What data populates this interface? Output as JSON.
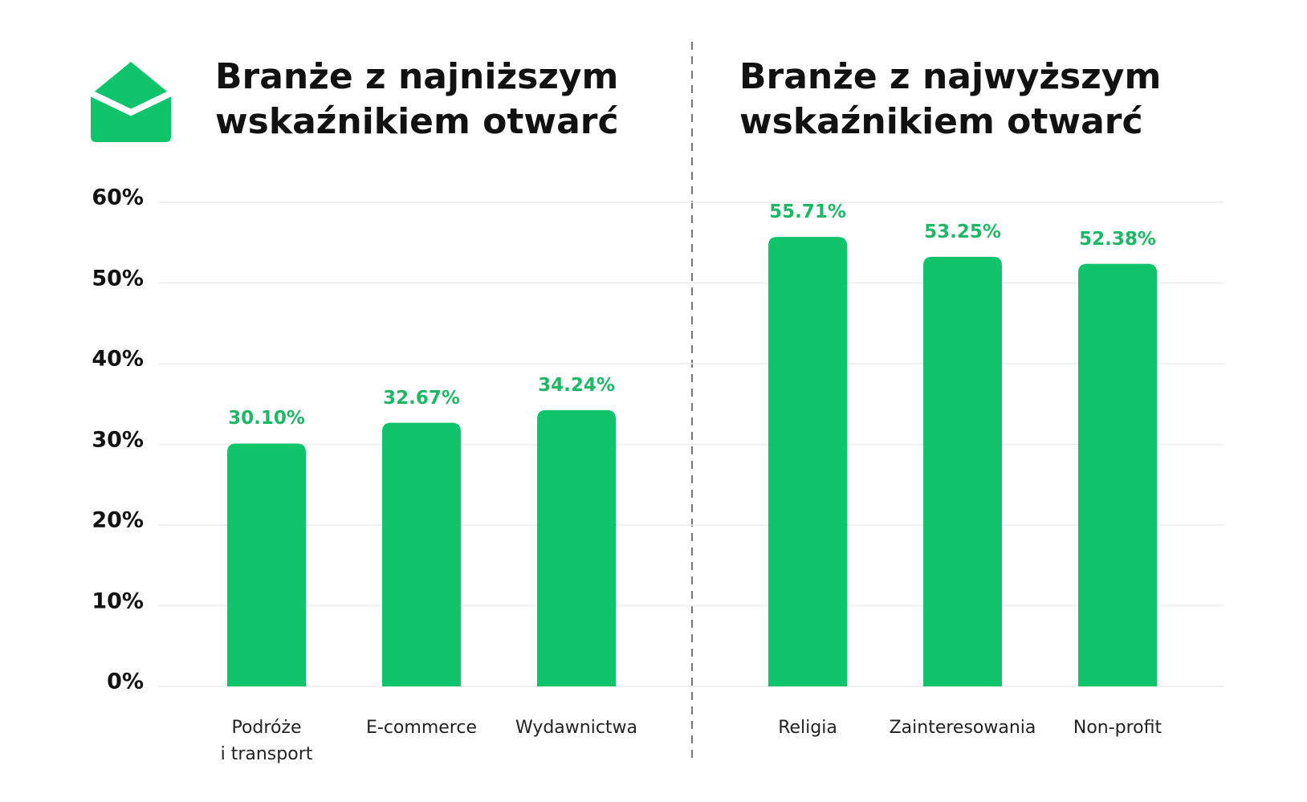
{
  "chart_data": [
    {
      "type": "bar",
      "title": "Branże z najniższym\nwskaźnikiem otwarć",
      "categories": [
        "Podróże\ni transport",
        "E-commerce",
        "Wydawnictwa"
      ],
      "values": [
        30.1,
        32.67,
        34.24
      ],
      "value_labels": [
        "30.10%",
        "32.67%",
        "34.24%"
      ],
      "color": "#0fc46b",
      "ylim": [
        0,
        60
      ],
      "yticks": [
        {
          "value": 0,
          "label": "0%"
        },
        {
          "value": 10,
          "label": "10%"
        },
        {
          "value": 20,
          "label": "20%"
        },
        {
          "value": 30,
          "label": "30%"
        },
        {
          "value": 40,
          "label": "40%"
        },
        {
          "value": 50,
          "label": "50%"
        },
        {
          "value": 60,
          "label": "60%"
        }
      ],
      "grid": true
    },
    {
      "type": "bar",
      "title": "Branże z najwyższym\nwskaźnikiem otwarć",
      "categories": [
        "Religia",
        "Zainteresowania",
        "Non-profit"
      ],
      "values": [
        55.71,
        53.25,
        52.38
      ],
      "value_labels": [
        "55.71%",
        "53.25%",
        "52.38%"
      ],
      "color": "#0fc46b",
      "ylim": [
        0,
        60
      ]
    }
  ]
}
